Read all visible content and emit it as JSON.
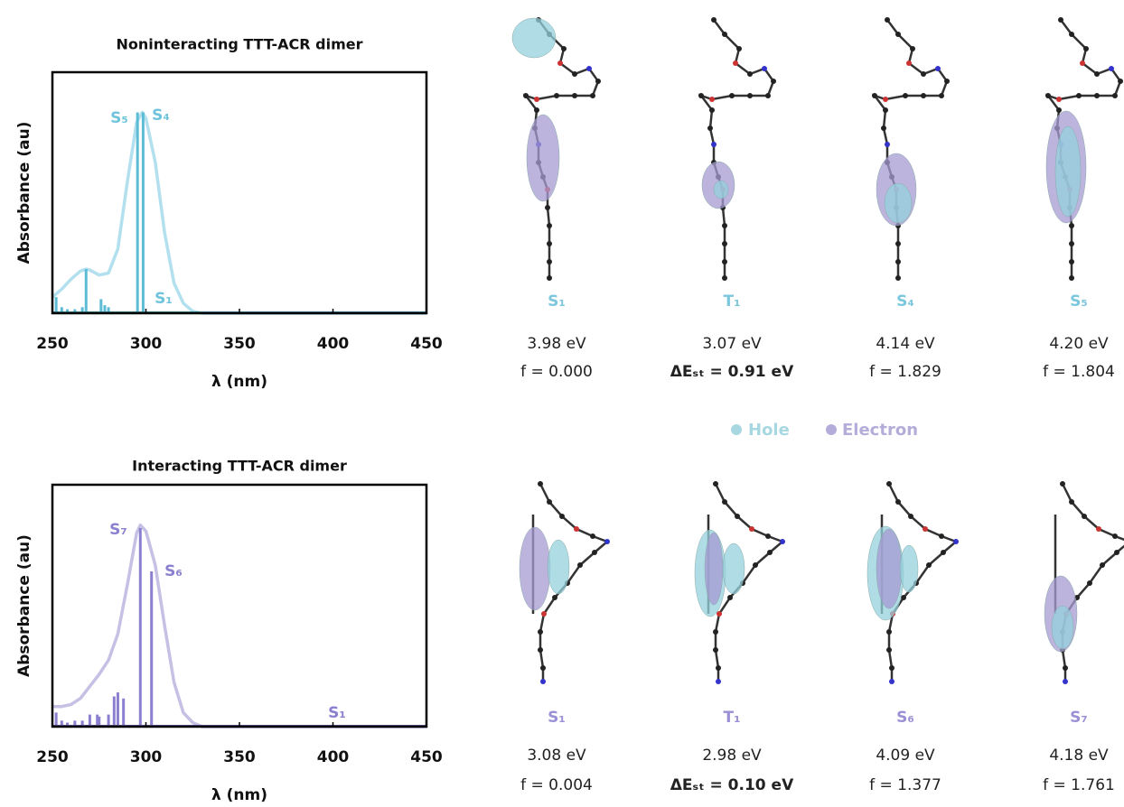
{
  "chart_data": [
    {
      "type": "line",
      "title": "Noninteracting TTT-ACR dimer",
      "x_label": "λ (nm)",
      "y_label": "Absorbance (au)",
      "xlim": [
        250,
        450
      ],
      "xticks": [
        250,
        300,
        350,
        400,
        450
      ],
      "ylim": [
        0,
        1.2
      ],
      "series": [
        {
          "kind": "spectrum",
          "color": "#b3e0ee",
          "x": [
            250,
            255,
            260,
            265,
            268,
            270,
            275,
            280,
            285,
            290,
            295,
            298,
            300,
            305,
            310,
            315,
            320,
            325,
            330,
            350,
            400,
            450
          ],
          "values": [
            0.08,
            0.12,
            0.17,
            0.21,
            0.22,
            0.215,
            0.19,
            0.2,
            0.32,
            0.65,
            0.95,
            1.0,
            0.97,
            0.75,
            0.4,
            0.15,
            0.05,
            0.01,
            0,
            0,
            0,
            0
          ]
        },
        {
          "kind": "stick",
          "color": "#5cbcd6",
          "x": [
            252,
            255,
            258,
            262,
            266,
            268,
            276,
            278,
            280,
            295.5,
            298.5,
            311
          ],
          "values": [
            0.08,
            0.03,
            0.02,
            0.02,
            0.03,
            0.22,
            0.07,
            0.04,
            0.03,
            1.0,
            1.0,
            0.003
          ]
        }
      ],
      "annotations": [
        "S₅",
        "S₄",
        "S₁"
      ],
      "annotation_color": "#6fc4dc",
      "axis_color": "#3a7f8c"
    },
    {
      "type": "line",
      "title": "Interacting TTT-ACR dimer",
      "x_label": "λ (nm)",
      "y_label": "Absorbance (au)",
      "xlim": [
        250,
        450
      ],
      "xticks": [
        250,
        300,
        350,
        400,
        450
      ],
      "ylim": [
        0,
        1.2
      ],
      "series": [
        {
          "kind": "spectrum",
          "color": "#c6c0e4",
          "x": [
            250,
            255,
            260,
            265,
            270,
            275,
            280,
            285,
            290,
            295,
            297,
            300,
            305,
            310,
            315,
            320,
            325,
            330,
            350,
            400,
            450
          ],
          "values": [
            0.1,
            0.1,
            0.11,
            0.14,
            0.2,
            0.26,
            0.33,
            0.46,
            0.7,
            0.96,
            1.0,
            0.97,
            0.8,
            0.5,
            0.22,
            0.07,
            0.02,
            0,
            0,
            0,
            0
          ]
        },
        {
          "kind": "stick",
          "color": "#8a80cf",
          "x": [
            252,
            255,
            258,
            262,
            266,
            270,
            274,
            275,
            280,
            283,
            285,
            288,
            297,
            303,
            401
          ],
          "values": [
            0.07,
            0.03,
            0.02,
            0.03,
            0.03,
            0.06,
            0.06,
            0.05,
            0.06,
            0.15,
            0.17,
            0.14,
            0.985,
            0.77,
            0.003
          ]
        }
      ],
      "annotations": [
        "S₇",
        "S₆",
        "S₁"
      ],
      "annotation_color": "#8a80cf",
      "axis_color": "#5a5390"
    }
  ],
  "panels": [
    {
      "color": "#7cc7dd",
      "states": [
        {
          "label": "S₁",
          "energy": "3.98 eV",
          "detail": "f = 0.000"
        },
        {
          "label": "T₁",
          "energy": "3.07 eV",
          "detail": "ΔEₛₜ = 0.91 eV"
        },
        {
          "label": "S₄",
          "energy": "4.14 eV",
          "detail": "f = 1.829"
        },
        {
          "label": "S₅",
          "energy": "4.20 eV",
          "detail": "f = 1.804"
        }
      ]
    },
    {
      "color": "#9a90d6",
      "states": [
        {
          "label": "S₁",
          "energy": "3.08 eV",
          "detail": "f = 0.004"
        },
        {
          "label": "T₁",
          "energy": "2.98 eV",
          "detail": "ΔEₛₜ = 0.10 eV"
        },
        {
          "label": "S₆",
          "energy": "4.09 eV",
          "detail": "f = 1.377"
        },
        {
          "label": "S₇",
          "energy": "4.18 eV",
          "detail": "f = 1.761"
        }
      ]
    }
  ],
  "legend": [
    {
      "name": "Hole",
      "color": "#a7d8e2"
    },
    {
      "name": "Electron",
      "color": "#b4acd9"
    }
  ]
}
